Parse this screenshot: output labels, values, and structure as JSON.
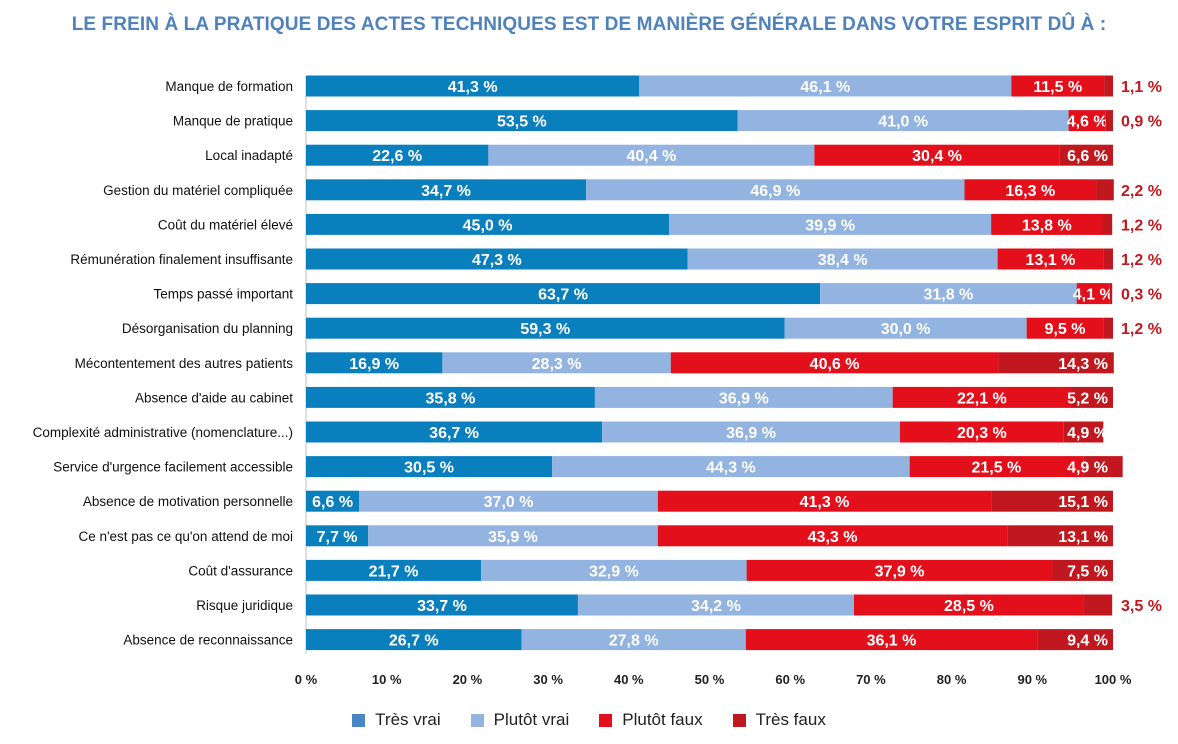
{
  "chart_data": {
    "type": "bar",
    "orientation": "horizontal",
    "stacked": true,
    "title": "LE FREIN À LA PRATIQUE DES ACTES TECHNIQUES EST DE MANIÈRE GÉNÉRALE DANS VOTRE ESPRIT DÛ À :",
    "categories": [
      "Manque de formation",
      "Manque de pratique",
      "Local inadapté",
      "Gestion du matériel compliquée",
      "Coût du matériel élevé",
      "Rémunération finalement insuffisante",
      "Temps passé important",
      "Désorganisation du planning",
      "Mécontentement des autres patients",
      "Absence d'aide au cabinet",
      "Complexité administrative (nomenclature...)",
      "Service d'urgence facilement accessible",
      "Absence de motivation personnelle",
      "Ce n'est pas ce qu'on attend de moi",
      "Coût d'assurance",
      "Risque juridique",
      "Absence de reconnaissance"
    ],
    "series": [
      {
        "name": "Très vrai",
        "color": "#0a7fbd",
        "values": [
          41.3,
          53.5,
          22.6,
          34.7,
          45.0,
          47.3,
          63.7,
          59.3,
          16.9,
          35.8,
          36.7,
          30.5,
          6.6,
          7.7,
          21.7,
          33.7,
          26.7
        ],
        "labels": [
          "41,3 %",
          "53,5 %",
          "22,6 %",
          "34,7 %",
          "45,0 %",
          "47,3 %",
          "63,7 %",
          "59,3 %",
          "16,9 %",
          "35,8 %",
          "36,7 %",
          "30,5 %",
          "6,6 %",
          "7,7 %",
          "21,7 %",
          "33,7 %",
          "26,7 %"
        ]
      },
      {
        "name": "Plutôt vrai",
        "color": "#93b3e0",
        "values": [
          46.1,
          41.0,
          40.4,
          46.9,
          39.9,
          38.4,
          31.8,
          30.0,
          28.3,
          36.9,
          36.9,
          44.3,
          37.0,
          35.9,
          32.9,
          34.2,
          27.8
        ],
        "labels": [
          "46,1 %",
          "41,0 %",
          "40,4 %",
          "46,9 %",
          "39,9 %",
          "38,4 %",
          "31,8 %",
          "30,0 %",
          "28,3 %",
          "36,9 %",
          "36,9 %",
          "44,3 %",
          "37,0 %",
          "35,9 %",
          "32,9 %",
          "34,2 %",
          "27,8 %"
        ]
      },
      {
        "name": "Plutôt faux",
        "color": "#e30f1b",
        "values": [
          11.5,
          4.6,
          30.4,
          16.3,
          13.8,
          13.1,
          4.1,
          9.5,
          40.6,
          22.1,
          20.3,
          21.5,
          41.3,
          43.3,
          37.9,
          28.5,
          36.1
        ],
        "labels": [
          "11,5 %",
          "4,6 %",
          "30,4 %",
          "16,3 %",
          "13,8 %",
          "13,1 %",
          "4,1 %",
          "9,5 %",
          "40,6 %",
          "22,1 %",
          "20,3 %",
          "21,5 %",
          "41,3 %",
          "43,3 %",
          "37,9 %",
          "28,5 %",
          "36,1 %"
        ]
      },
      {
        "name": "Très faux",
        "color": "#c0181e",
        "values": [
          1.1,
          0.9,
          6.6,
          2.2,
          1.2,
          1.2,
          0.3,
          1.2,
          14.3,
          5.2,
          4.9,
          4.9,
          15.1,
          13.1,
          7.5,
          3.5,
          9.4
        ],
        "labels": [
          "1,1 %",
          "0,9 %",
          "6,6 %",
          "2,2 %",
          "1,2 %",
          "1,2 %",
          "0,3 %",
          "1,2 %",
          "14,3 %",
          "5,2 %",
          "4,9 %",
          "4,9 %",
          "15,1 %",
          "13,1 %",
          "7,5 %",
          "3,5 %",
          "9,4 %"
        ]
      }
    ],
    "xlim": [
      0,
      100
    ],
    "x_ticks": [
      "0 %",
      "10 %",
      "20 %",
      "30 %",
      "40 %",
      "50 %",
      "60 %",
      "70 %",
      "80 %",
      "90 %",
      "100 %"
    ],
    "legend": "bottom",
    "outside_label_color": "#c0181e"
  }
}
